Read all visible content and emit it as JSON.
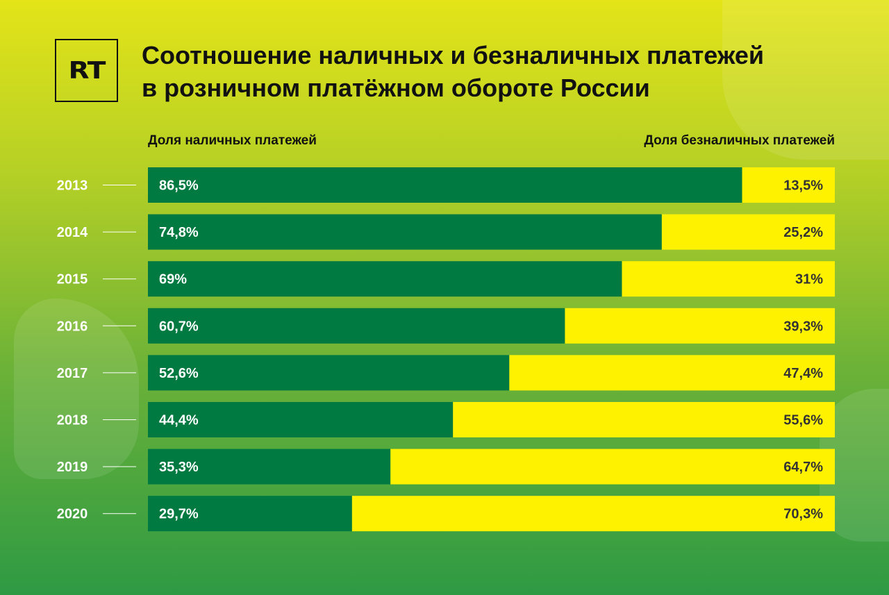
{
  "header": {
    "logo_text": "RT",
    "title_line1": "Соотношение наличных и безналичных платежей",
    "title_line2": "в розничном платёжном обороте России"
  },
  "legend": {
    "cash_label": "Доля наличных платежей",
    "cashless_label": "Доля безналичных платежей"
  },
  "colors": {
    "cash": "#007a41",
    "cashless": "#fff200",
    "cash_text": "#ffffff",
    "cashless_text": "#333333",
    "year_text": "#ffffff"
  },
  "chart_data": {
    "type": "bar",
    "orientation": "horizontal-stacked-100",
    "categories": [
      "2013",
      "2014",
      "2015",
      "2016",
      "2017",
      "2018",
      "2019",
      "2020"
    ],
    "series": [
      {
        "name": "Доля наличных платежей",
        "values": [
          86.5,
          74.8,
          69,
          60.7,
          52.6,
          44.4,
          35.3,
          29.7
        ],
        "labels": [
          "86,5%",
          "74,8%",
          "69%",
          "60,7%",
          "52,6%",
          "44,4%",
          "35,3%",
          "29,7%"
        ]
      },
      {
        "name": "Доля безналичных платежей",
        "values": [
          13.5,
          25.2,
          31,
          39.3,
          47.4,
          55.6,
          64.7,
          70.3
        ],
        "labels": [
          "13,5%",
          "25,2%",
          "31%",
          "39,3%",
          "47,4%",
          "55,6%",
          "64,7%",
          "70,3%"
        ]
      }
    ],
    "xlim": [
      0,
      100
    ],
    "grid": false
  }
}
